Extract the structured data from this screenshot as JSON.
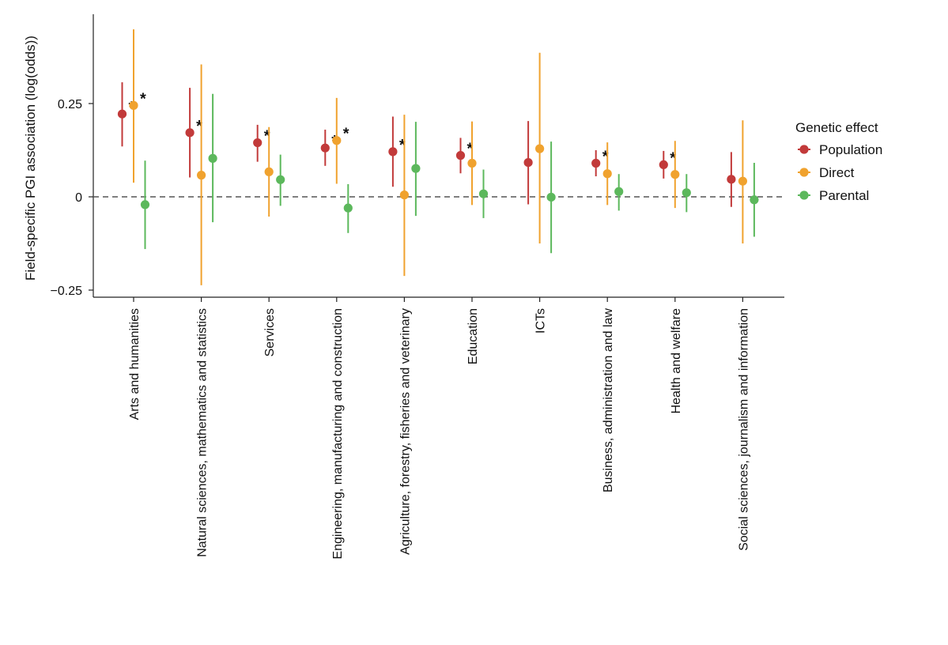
{
  "chart_data": {
    "type": "scatter",
    "subtype": "point-range",
    "title": "",
    "xlabel": "",
    "ylabel": "Field-specific PGI association (log(odds))",
    "ylim": [
      -0.27,
      0.49
    ],
    "yticks": [
      -0.25,
      0,
      0.25
    ],
    "ytick_labels": [
      "−0.25",
      "0",
      "0.25"
    ],
    "reference_line": 0,
    "significance_marker": "*",
    "legend": {
      "title": "Genetic effect",
      "position": "right",
      "entries": [
        "Population",
        "Direct",
        "Parental"
      ]
    },
    "categories": [
      "Arts and humanities",
      "Natural sciences, mathematics and statistics",
      "Services",
      "Engineering, manufacturing and construction",
      "Agriculture, forestry, fisheries and veterinary",
      "Education",
      "ICTs",
      "Business, administration and law",
      "Health and welfare",
      "Social sciences, journalism and information"
    ],
    "series": [
      {
        "name": "Population",
        "color": "#c23a3a",
        "values": [
          0.222,
          0.172,
          0.145,
          0.131,
          0.121,
          0.111,
          0.092,
          0.09,
          0.086,
          0.047
        ],
        "lower": [
          0.135,
          0.052,
          0.094,
          0.083,
          0.027,
          0.063,
          -0.02,
          0.055,
          0.049,
          -0.027
        ],
        "upper": [
          0.307,
          0.292,
          0.193,
          0.18,
          0.215,
          0.158,
          0.203,
          0.125,
          0.123,
          0.12
        ],
        "significant": [
          true,
          true,
          true,
          true,
          true,
          true,
          false,
          true,
          true,
          false
        ]
      },
      {
        "name": "Direct",
        "color": "#f0a22e",
        "values": [
          0.245,
          0.058,
          0.067,
          0.151,
          0.005,
          0.09,
          0.129,
          0.062,
          0.06,
          0.042
        ],
        "lower": [
          0.038,
          -0.237,
          -0.053,
          0.035,
          -0.212,
          -0.022,
          -0.125,
          -0.022,
          -0.03,
          -0.125
        ],
        "upper": [
          0.449,
          0.355,
          0.187,
          0.265,
          0.22,
          0.202,
          0.386,
          0.146,
          0.15,
          0.205
        ],
        "significant": [
          true,
          false,
          false,
          true,
          false,
          false,
          false,
          false,
          false,
          false
        ]
      },
      {
        "name": "Parental",
        "color": "#5cb85c",
        "values": [
          -0.021,
          0.103,
          0.046,
          -0.03,
          0.076,
          0.008,
          -0.001,
          0.014,
          0.011,
          -0.008
        ],
        "lower": [
          -0.14,
          -0.068,
          -0.024,
          -0.097,
          -0.051,
          -0.057,
          -0.151,
          -0.037,
          -0.041,
          -0.107
        ],
        "upper": [
          0.097,
          0.276,
          0.113,
          0.034,
          0.201,
          0.073,
          0.148,
          0.061,
          0.061,
          0.091
        ],
        "significant": [
          false,
          false,
          false,
          false,
          false,
          false,
          false,
          false,
          false,
          false
        ]
      }
    ]
  }
}
